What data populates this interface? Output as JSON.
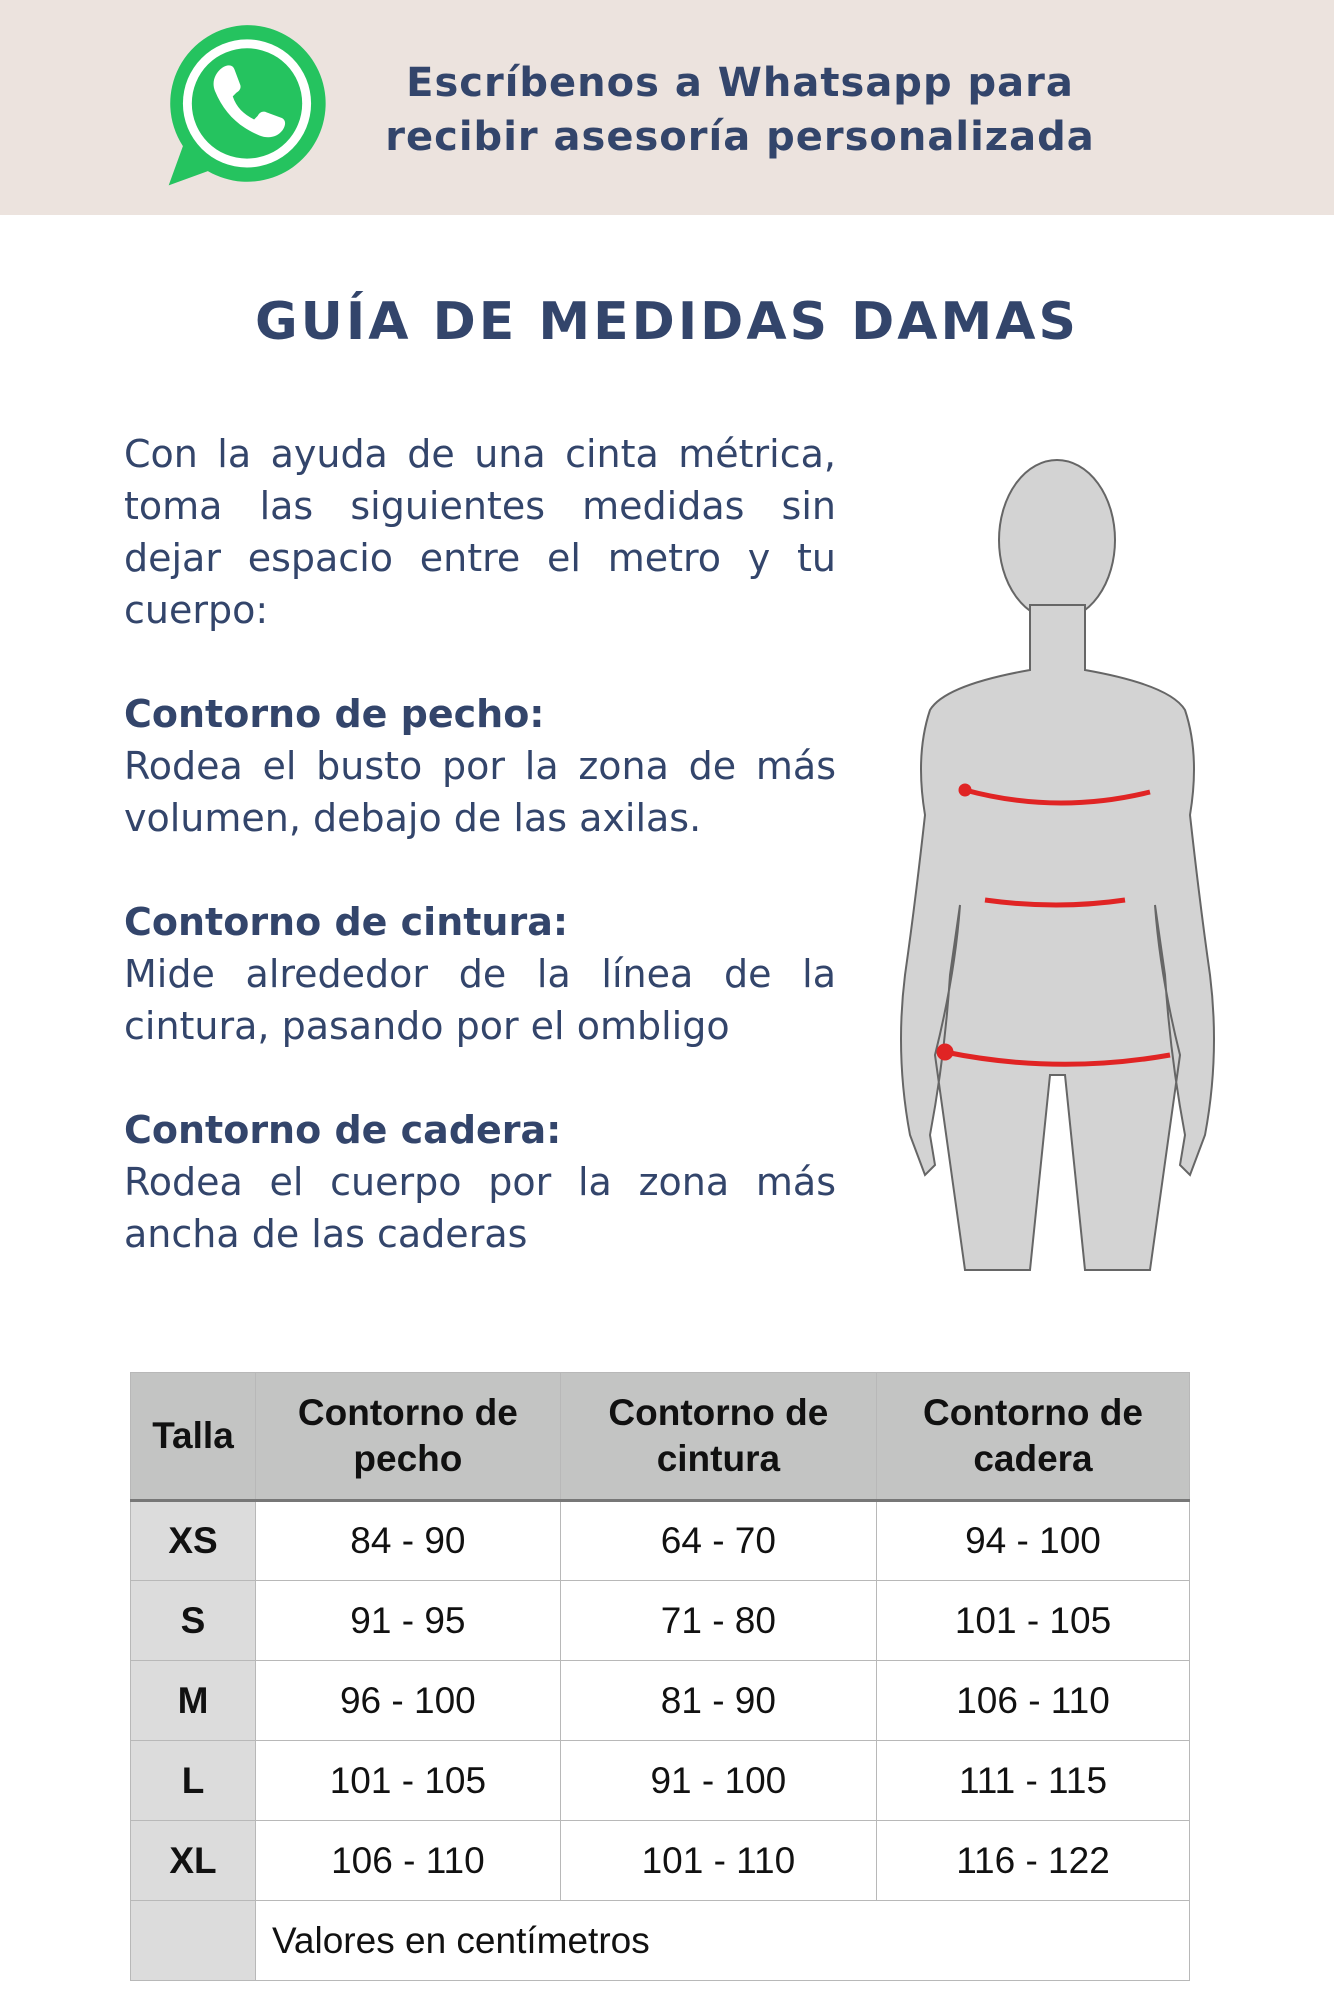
{
  "banner": {
    "icon": "whatsapp-icon",
    "text_line1": "Escríbenos a Whatsapp para",
    "text_line2": "recibir asesoría personalizada",
    "brand_color": "#25c35f"
  },
  "title": "GUÍA DE MEDIDAS DAMAS",
  "instructions": {
    "intro": "Con la ayuda de una cinta métrica, toma las siguientes medidas sin dejar espacio entre el metro y tu cuerpo:",
    "sections": [
      {
        "heading": "Contorno de pecho:",
        "text": "Rodea el busto por la zona de más volumen, debajo de las axilas."
      },
      {
        "heading": "Contorno de cintura:",
        "text": "Mide alrededor de la línea de la cintura, pasando por el ombligo"
      },
      {
        "heading": "Contorno de cadera:",
        "text": "Rodea el cuerpo por la zona más ancha de las caderas"
      }
    ]
  },
  "table": {
    "headers": [
      "Talla",
      "Contorno de pecho",
      "Contorno de cintura",
      "Contorno de cadera"
    ],
    "rows": [
      [
        "XS",
        "84 - 90",
        "64 - 70",
        "94 - 100"
      ],
      [
        "S",
        "91 - 95",
        "71 - 80",
        "101 - 105"
      ],
      [
        "M",
        "96 - 100",
        "81 - 90",
        "106 - 110"
      ],
      [
        "L",
        "101 - 105",
        "91 - 100",
        "111 - 115"
      ],
      [
        "XL",
        "106 - 110",
        "101 - 110",
        "116 - 122"
      ]
    ],
    "note": "Valores en centímetros"
  },
  "colors": {
    "text": "#33456b",
    "banner_bg": "#ece3de",
    "measure_line": "#e02424",
    "body_fill": "#d3d3d3"
  }
}
